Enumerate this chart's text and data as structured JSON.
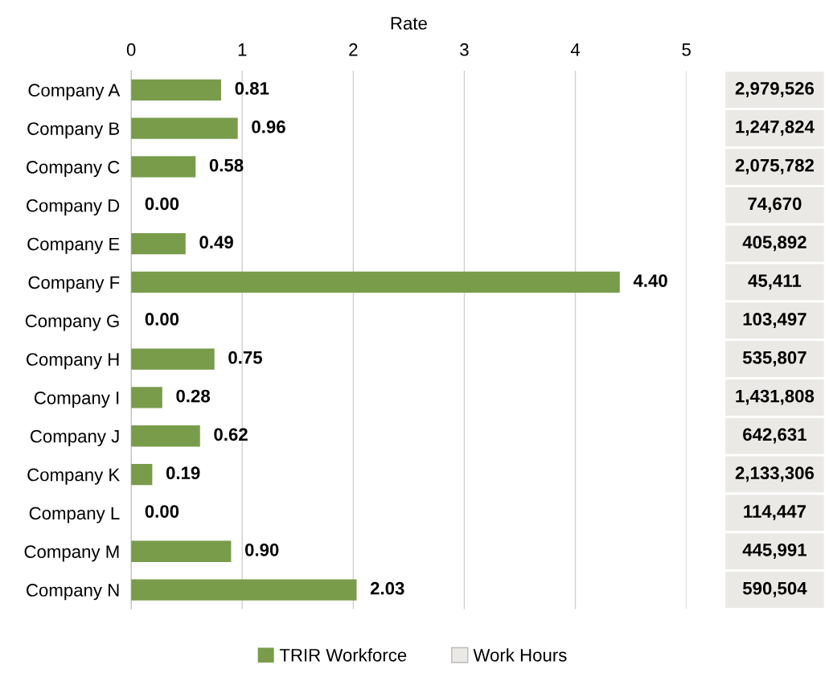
{
  "chart_data": [
    {
      "type": "bar",
      "orientation": "horizontal",
      "xlabel": "Rate",
      "categories": [
        "Company A",
        "Company B",
        "Company C",
        "Company D",
        "Company E",
        "Company F",
        "Company G",
        "Company H",
        "Company I",
        "Company J",
        "Company K",
        "Company L",
        "Company M",
        "Company N"
      ],
      "series": [
        {
          "name": "TRIR Workforce",
          "color": "#789c4a",
          "values": [
            0.81,
            0.96,
            0.58,
            0.0,
            0.49,
            4.4,
            0.0,
            0.75,
            0.28,
            0.62,
            0.19,
            0.0,
            0.9,
            2.03
          ],
          "value_labels": [
            "0.81",
            "0.96",
            "0.58",
            "0.00",
            "0.49",
            "4.40",
            "0.00",
            "0.75",
            "0.28",
            "0.62",
            "0.19",
            "0.00",
            "0.90",
            "2.03"
          ]
        }
      ],
      "xlim": [
        0,
        5
      ],
      "xticks": [
        0,
        1,
        2,
        3,
        4,
        5
      ],
      "grid": "x",
      "legend": "bottom"
    },
    {
      "type": "other",
      "series": [
        {
          "name": "Work Hours",
          "color": "#ebe9e6",
          "values": [
            2979526,
            1247824,
            2075782,
            74670,
            405892,
            45411,
            103497,
            535807,
            1431808,
            642631,
            2133306,
            114447,
            445991,
            590504
          ],
          "value_labels": [
            "2,979,526",
            "1,247,824",
            "2,075,782",
            "74,670",
            "405,892",
            "45,411",
            "103,497",
            "535,807",
            "1,431,808",
            "642,631",
            "2,133,306",
            "114,447",
            "445,991",
            "590,504"
          ]
        }
      ]
    }
  ]
}
